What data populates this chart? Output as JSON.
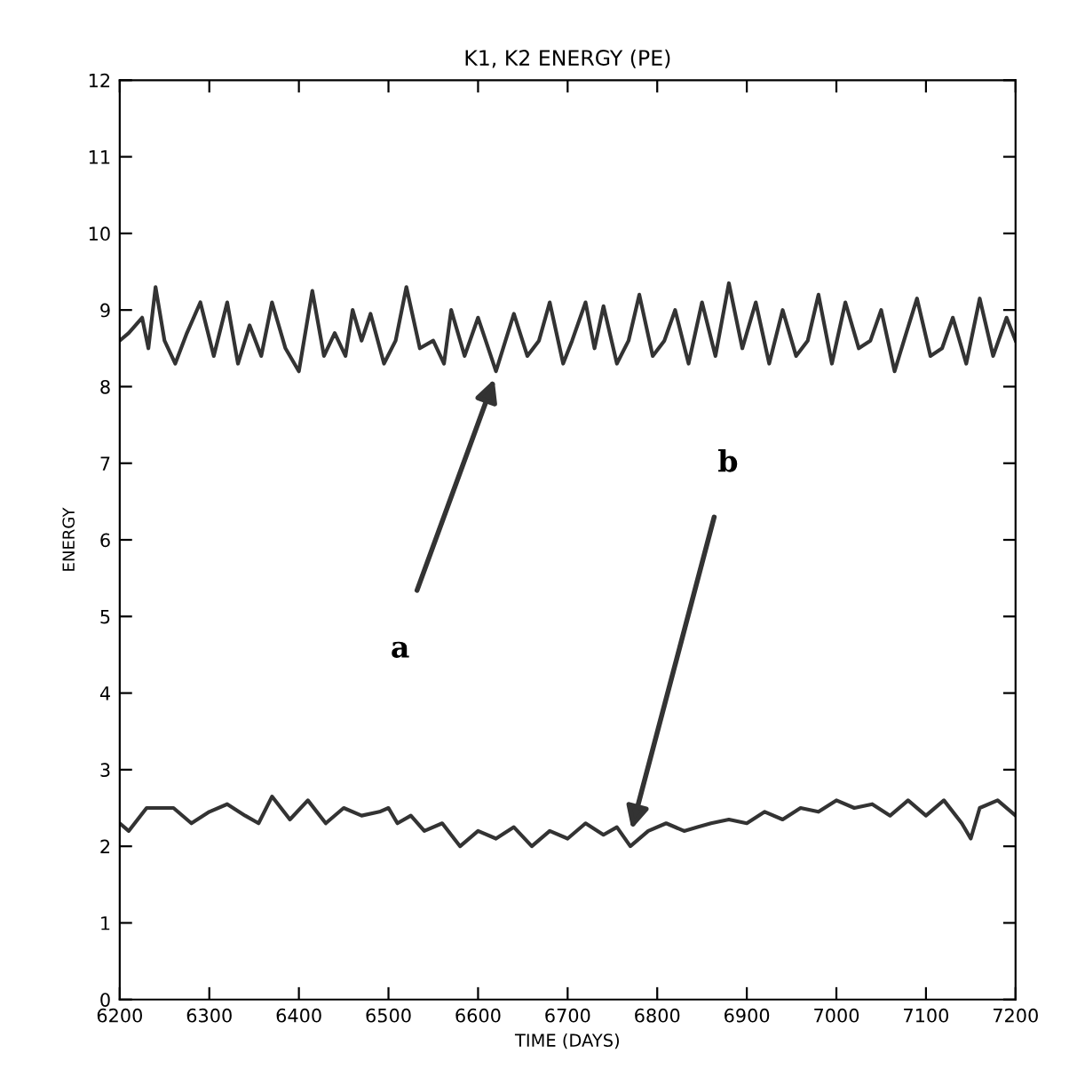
{
  "chart_data": {
    "type": "line",
    "title": "K1, K2 ENERGY (PE)",
    "xlabel": "TIME (DAYS)",
    "ylabel": "ENERGY",
    "xlim": [
      6200,
      7200
    ],
    "xticks": [
      6200,
      6300,
      6400,
      6500,
      6600,
      6700,
      6800,
      6900,
      7000,
      7100,
      7200
    ],
    "ylim": [
      0,
      12
    ],
    "yticks": [
      0,
      1,
      2,
      3,
      4,
      5,
      6,
      7,
      8,
      9,
      10,
      11,
      12
    ],
    "grid": false,
    "legend": false,
    "marker": "none",
    "line_style": "solid",
    "series": [
      {
        "color": "#333333",
        "x": [
          6200,
          6210,
          6225,
          6232,
          6240,
          6250,
          6262,
          6275,
          6290,
          6305,
          6320,
          6332,
          6345,
          6358,
          6370,
          6385,
          6400,
          6415,
          6428,
          6440,
          6452,
          6460,
          6470,
          6480,
          6495,
          6508,
          6520,
          6535,
          6550,
          6562,
          6570,
          6585,
          6600,
          6620,
          6640,
          6655,
          6668,
          6680,
          6695,
          6705,
          6720,
          6730,
          6740,
          6755,
          6768,
          6780,
          6795,
          6808,
          6820,
          6835,
          6850,
          6865,
          6880,
          6895,
          6910,
          6925,
          6940,
          6955,
          6968,
          6980,
          6995,
          7010,
          7025,
          7038,
          7050,
          7065,
          7078,
          7090,
          7105,
          7118,
          7130,
          7145,
          7160,
          7175,
          7190,
          7200
        ],
        "values": [
          8.6,
          8.7,
          8.9,
          8.5,
          9.3,
          8.6,
          8.3,
          8.7,
          9.1,
          8.4,
          9.1,
          8.3,
          8.8,
          8.4,
          9.1,
          8.5,
          8.2,
          9.25,
          8.4,
          8.7,
          8.4,
          9.0,
          8.6,
          8.95,
          8.3,
          8.6,
          9.3,
          8.5,
          8.6,
          8.3,
          9.0,
          8.4,
          8.9,
          8.2,
          8.95,
          8.4,
          8.6,
          9.1,
          8.3,
          8.6,
          9.1,
          8.5,
          9.05,
          8.3,
          8.6,
          9.2,
          8.4,
          8.6,
          9.0,
          8.3,
          9.1,
          8.4,
          9.35,
          8.5,
          9.1,
          8.3,
          9.0,
          8.4,
          8.6,
          9.2,
          8.3,
          9.1,
          8.5,
          8.6,
          9.0,
          8.2,
          8.7,
          9.15,
          8.4,
          8.5,
          8.9,
          8.3,
          9.15,
          8.4,
          8.9,
          8.6
        ]
      },
      {
        "color": "#333333",
        "x": [
          6200,
          6210,
          6230,
          6260,
          6280,
          6300,
          6320,
          6340,
          6355,
          6370,
          6390,
          6410,
          6430,
          6450,
          6470,
          6490,
          6500,
          6510,
          6525,
          6540,
          6560,
          6580,
          6600,
          6620,
          6640,
          6660,
          6680,
          6700,
          6720,
          6740,
          6755,
          6770,
          6790,
          6810,
          6830,
          6845,
          6860,
          6880,
          6900,
          6920,
          6940,
          6960,
          6980,
          7000,
          7020,
          7040,
          7060,
          7080,
          7100,
          7120,
          7140,
          7150,
          7160,
          7180,
          7200
        ],
        "values": [
          2.3,
          2.2,
          2.5,
          2.5,
          2.3,
          2.45,
          2.55,
          2.4,
          2.3,
          2.65,
          2.35,
          2.6,
          2.3,
          2.5,
          2.4,
          2.45,
          2.5,
          2.3,
          2.4,
          2.2,
          2.3,
          2.0,
          2.2,
          2.1,
          2.25,
          2.0,
          2.2,
          2.1,
          2.3,
          2.15,
          2.25,
          2.0,
          2.2,
          2.3,
          2.2,
          2.25,
          2.3,
          2.35,
          2.3,
          2.45,
          2.35,
          2.5,
          2.45,
          2.6,
          2.5,
          2.55,
          2.4,
          2.6,
          2.4,
          2.6,
          2.3,
          2.1,
          2.5,
          2.6,
          2.4
        ]
      }
    ],
    "annotations": [
      "a",
      "b"
    ]
  }
}
